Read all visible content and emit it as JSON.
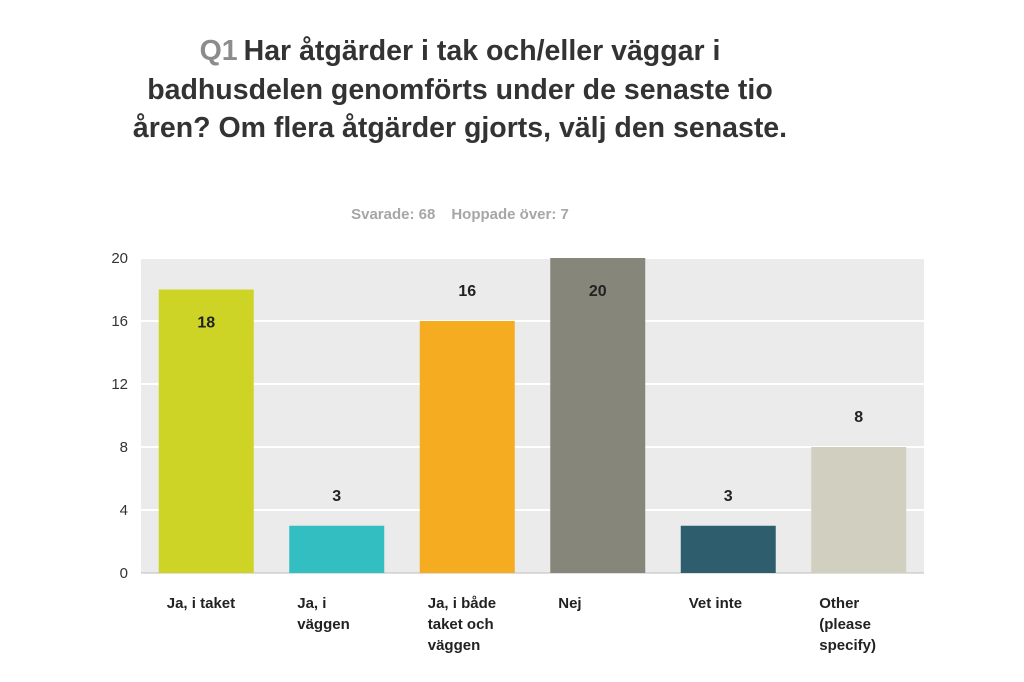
{
  "title": {
    "qnum": "Q1",
    "text": "Har åtgärder i tak och/eller väggar i badhusdelen genomförts under de senaste tio åren? Om flera åtgärder gjorts, välj den senaste."
  },
  "stats": {
    "answered": "Svarade: 68",
    "skipped": "Hoppade över: 7"
  },
  "chart_data": {
    "type": "bar",
    "categories": [
      "Ja, i taket",
      "Ja, i väggen",
      "Ja, i både taket och väggen",
      "Nej",
      "Vet inte",
      "Other (please specify)"
    ],
    "values": [
      18,
      3,
      16,
      20,
      3,
      8
    ],
    "colors": [
      "#cdd426",
      "#33bec1",
      "#f5ac20",
      "#86877a",
      "#2e5e6e",
      "#d0cfc0"
    ],
    "ylim": [
      0,
      20
    ],
    "yticks": [
      0,
      4,
      8,
      12,
      16,
      20
    ],
    "grid": true,
    "background": "#ebebeb"
  }
}
